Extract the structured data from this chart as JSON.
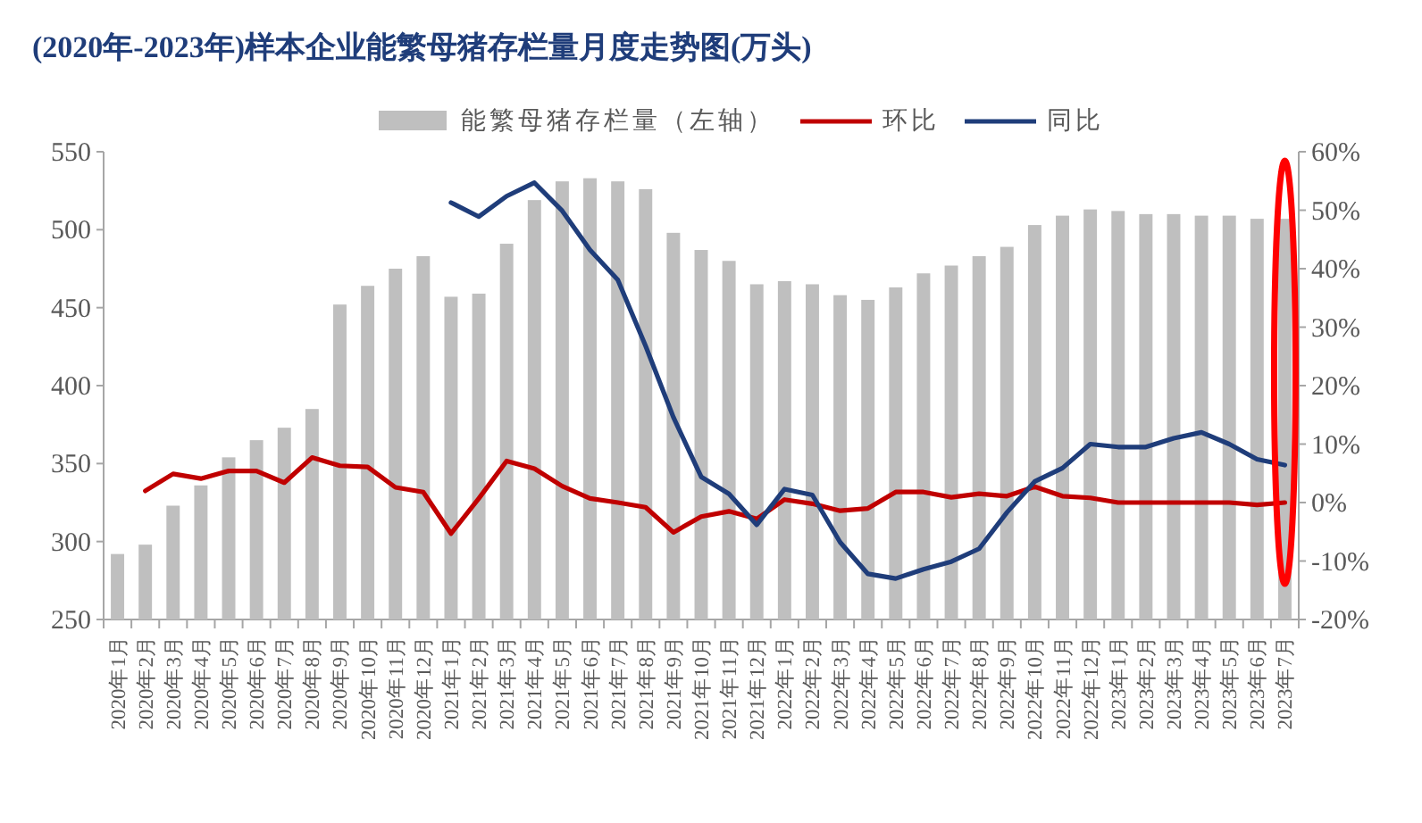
{
  "chart_data": {
    "type": "bar",
    "title": "(2020年-2023年)样本企业能繁母猪存栏量月度走势图(万头)",
    "categories": [
      "2020年1月",
      "2020年2月",
      "2020年3月",
      "2020年4月",
      "2020年5月",
      "2020年6月",
      "2020年7月",
      "2020年8月",
      "2020年9月",
      "2020年10月",
      "2020年11月",
      "2020年12月",
      "2021年1月",
      "2021年2月",
      "2021年3月",
      "2021年4月",
      "2021年5月",
      "2021年6月",
      "2021年7月",
      "2021年8月",
      "2021年9月",
      "2021年10月",
      "2021年11月",
      "2021年12月",
      "2022年1月",
      "2022年2月",
      "2022年3月",
      "2022年4月",
      "2022年5月",
      "2022年6月",
      "2022年7月",
      "2022年8月",
      "2022年9月",
      "2022年10月",
      "2022年11月",
      "2022年12月",
      "2023年1月",
      "2023年2月",
      "2023年3月",
      "2023年4月",
      "2023年5月",
      "2023年6月",
      "2023年7月"
    ],
    "series": [
      {
        "name": "能繁母猪存栏量（左轴）",
        "color": "#bfbfbf",
        "values": [
          292,
          298,
          323,
          336,
          354,
          365,
          373,
          385,
          452,
          464,
          475,
          483,
          457,
          459,
          491,
          519,
          531,
          533,
          531,
          526,
          498,
          487,
          480,
          465,
          467,
          465,
          458,
          455,
          463,
          472,
          477,
          483,
          489,
          503,
          509,
          513,
          512,
          510,
          510,
          509,
          509,
          507,
          507
        ]
      },
      {
        "name": "环比",
        "type": "line",
        "axis": "y2",
        "color": "#c00000",
        "values": [
          null,
          2.0,
          4.9,
          4.1,
          5.4,
          5.4,
          3.4,
          7.7,
          6.3,
          6.1,
          2.6,
          1.8,
          -5.3,
          0.7,
          7.1,
          5.8,
          2.8,
          0.7,
          0,
          -0.8,
          -5.1,
          -2.4,
          -1.5,
          -2.8,
          0.5,
          -0.2,
          -1.4,
          -1.0,
          1.8,
          1.8,
          0.9,
          1.5,
          1.1,
          2.7,
          1.1,
          0.8,
          0,
          0,
          0,
          0,
          0,
          -0.4,
          0
        ]
      },
      {
        "name": "同比",
        "type": "line",
        "axis": "y2",
        "color": "#1f3d7a",
        "values": [
          null,
          null,
          null,
          null,
          null,
          null,
          null,
          null,
          null,
          null,
          null,
          null,
          51.3,
          48.9,
          52.4,
          54.7,
          49.9,
          43.2,
          38.1,
          26.8,
          14.6,
          4.4,
          1.5,
          -3.8,
          2.3,
          1.3,
          -6.8,
          -12.2,
          -13.0,
          -11.4,
          -10.1,
          -7.9,
          -1.7,
          3.6,
          5.9,
          10.0,
          9.5,
          9.5,
          11.0,
          12.0,
          10.0,
          7.4,
          6.4
        ]
      }
    ],
    "ylim": [
      250,
      550
    ],
    "yticks": [
      250,
      300,
      350,
      400,
      450,
      500,
      550
    ],
    "y2lim": [
      -20,
      60
    ],
    "y2ticks": [
      {
        "value": -20,
        "label": "-20%"
      },
      {
        "value": -10,
        "label": "-10%"
      },
      {
        "value": 0,
        "label": "0%"
      },
      {
        "value": 10,
        "label": "10%"
      },
      {
        "value": 20,
        "label": "20%"
      },
      {
        "value": 30,
        "label": "30%"
      },
      {
        "value": 40,
        "label": "40%"
      },
      {
        "value": 50,
        "label": "50%"
      },
      {
        "value": 60,
        "label": "60%"
      }
    ],
    "grid": false,
    "legend": "top",
    "marker": "none",
    "line_style": "solid"
  }
}
